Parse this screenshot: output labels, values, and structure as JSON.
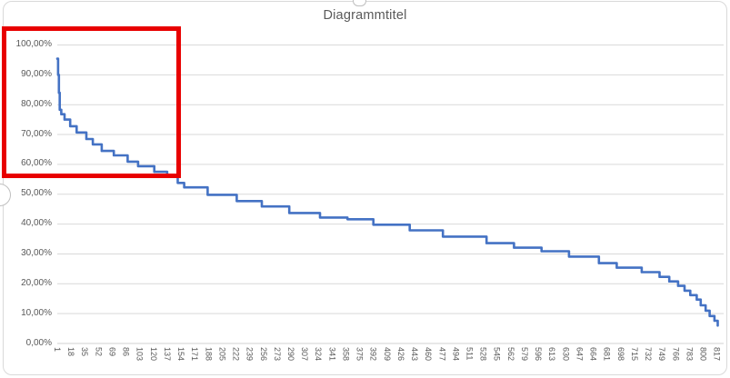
{
  "chart_data": {
    "type": "line",
    "subtype": "step-after",
    "title": "Diagrammtitel",
    "xlabel": "",
    "ylabel": "",
    "legend": "none",
    "grid": "horizontal",
    "x_range": [
      1,
      823
    ],
    "ylim_pct": [
      0,
      100
    ],
    "y_tick_step_pct": 10,
    "y_tick_labels": [
      "100,00%",
      "90,00%",
      "80,00%",
      "70,00%",
      "60,00%",
      "50,00%",
      "40,00%",
      "30,00%",
      "20,00%",
      "10,00%",
      "0,00%"
    ],
    "x_tick_labels": [
      "1",
      "18",
      "35",
      "52",
      "69",
      "86",
      "103",
      "120",
      "137",
      "154",
      "171",
      "188",
      "205",
      "222",
      "239",
      "256",
      "273",
      "290",
      "307",
      "324",
      "341",
      "358",
      "375",
      "392",
      "409",
      "426",
      "443",
      "460",
      "477",
      "494",
      "511",
      "528",
      "545",
      "562",
      "579",
      "596",
      "613",
      "630",
      "647",
      "664",
      "681",
      "698",
      "715",
      "732",
      "749",
      "766",
      "783",
      "800",
      "817"
    ],
    "line_color": "#4472C4",
    "points_x_pct": [
      [
        1,
        95.4
      ],
      [
        2,
        90.0
      ],
      [
        3,
        84.0
      ],
      [
        4,
        78.3
      ],
      [
        6,
        76.8
      ],
      [
        10,
        75.0
      ],
      [
        17,
        72.8
      ],
      [
        25,
        70.7
      ],
      [
        37,
        68.5
      ],
      [
        45,
        66.7
      ],
      [
        56,
        64.5
      ],
      [
        71,
        63.0
      ],
      [
        88,
        60.9
      ],
      [
        101,
        59.4
      ],
      [
        121,
        57.5
      ],
      [
        137,
        56.0
      ],
      [
        150,
        53.8
      ],
      [
        158,
        52.3
      ],
      [
        187,
        49.8
      ],
      [
        223,
        47.7
      ],
      [
        254,
        45.9
      ],
      [
        288,
        43.7
      ],
      [
        326,
        42.2
      ],
      [
        360,
        41.6
      ],
      [
        392,
        39.8
      ],
      [
        437,
        37.9
      ],
      [
        478,
        35.8
      ],
      [
        532,
        33.6
      ],
      [
        566,
        32.1
      ],
      [
        600,
        30.9
      ],
      [
        634,
        29.1
      ],
      [
        671,
        26.9
      ],
      [
        693,
        25.4
      ],
      [
        724,
        23.9
      ],
      [
        746,
        22.3
      ],
      [
        758,
        20.8
      ],
      [
        769,
        19.3
      ],
      [
        777,
        17.7
      ],
      [
        784,
        16.2
      ],
      [
        792,
        14.7
      ],
      [
        797,
        12.8
      ],
      [
        803,
        11.0
      ],
      [
        808,
        9.2
      ],
      [
        814,
        7.6
      ],
      [
        818,
        6.0
      ]
    ]
  },
  "annotation": {
    "shape": "rectangle",
    "color": "#E80000",
    "region": "upper-left steep start of curve (approx. categories 1-150, 55%-100%)"
  },
  "colors": {
    "line": "#4472C4",
    "grid": "#D9D9D9",
    "axis_line": "#D0D0D0",
    "axis_text": "#595959",
    "title_text": "#595959",
    "chart_border": "#D9D9D9",
    "annotation": "#E80000"
  }
}
